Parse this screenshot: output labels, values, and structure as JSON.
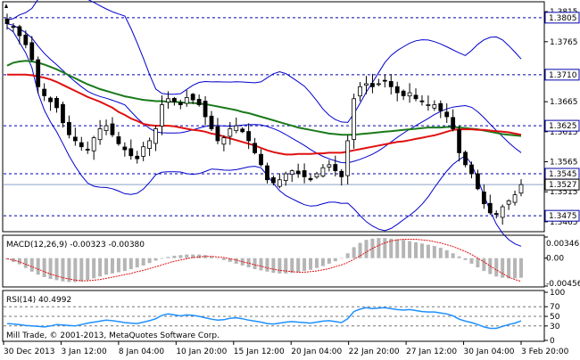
{
  "chart_data": [
    {
      "panel": "price",
      "type": "candlestick",
      "y_ticks": [
        "1.3815",
        "1.3765",
        "1.3665",
        "1.3615",
        "1.3565",
        "1.3515",
        "1.3465"
      ],
      "ylim": [
        1.345,
        1.383
      ],
      "level_lines": [
        {
          "label": "1.3805",
          "value": 1.3805
        },
        {
          "label": "1.3710",
          "value": 1.371
        },
        {
          "label": "1.3625",
          "value": 1.3625
        },
        {
          "label": "1.3545",
          "value": 1.3545
        },
        {
          "label": "1.3475",
          "value": 1.3475
        }
      ],
      "current_price": {
        "label": "1.3527",
        "value": 1.3527
      },
      "closes": [
        1.3795,
        1.379,
        1.3775,
        1.376,
        1.3735,
        1.369,
        1.3675,
        1.3665,
        1.3655,
        1.363,
        1.361,
        1.36,
        1.359,
        1.3585,
        1.3605,
        1.362,
        1.3625,
        1.361,
        1.3595,
        1.3585,
        1.3575,
        1.357,
        1.359,
        1.36,
        1.362,
        1.366,
        1.367,
        1.3665,
        1.366,
        1.3672,
        1.3668,
        1.366,
        1.364,
        1.362,
        1.36,
        1.3605,
        1.362,
        1.3625,
        1.3615,
        1.36,
        1.358,
        1.356,
        1.3535,
        1.353,
        1.3535,
        1.3545,
        1.355,
        1.3545,
        1.354,
        1.3535,
        1.3545,
        1.3555,
        1.356,
        1.355,
        1.354,
        1.36,
        1.367,
        1.369,
        1.3695,
        1.369,
        1.3695,
        1.37,
        1.369,
        1.368,
        1.3675,
        1.368,
        1.367,
        1.3665,
        1.366,
        1.366,
        1.365,
        1.364,
        1.362,
        1.358,
        1.356,
        1.3545,
        1.352,
        1.3495,
        1.348,
        1.3478,
        1.349,
        1.35,
        1.351,
        1.3527
      ],
      "sma_green": [
        1.3725,
        1.373,
        1.3732,
        1.3733,
        1.3732,
        1.373,
        1.3727,
        1.3723,
        1.3719,
        1.3714,
        1.3709,
        1.3704,
        1.3699,
        1.3694,
        1.369,
        1.3686,
        1.3683,
        1.368,
        1.3677,
        1.3674,
        1.3672,
        1.367,
        1.3668,
        1.3667,
        1.3666,
        1.3666,
        1.3665,
        1.3665,
        1.3664,
        1.3663,
        1.3663,
        1.3662,
        1.3661,
        1.3659,
        1.3657,
        1.3655,
        1.3653,
        1.3651,
        1.3648,
        1.3646,
        1.3643,
        1.364,
        1.3637,
        1.3634,
        1.3631,
        1.3628,
        1.3625,
        1.3622,
        1.362,
        1.3618,
        1.3616,
        1.3614,
        1.3612,
        1.3611,
        1.361,
        1.361,
        1.361,
        1.3611,
        1.3612,
        1.3613,
        1.3614,
        1.3615,
        1.3616,
        1.3617,
        1.3618,
        1.3619,
        1.362,
        1.3621,
        1.3622,
        1.3622,
        1.3622,
        1.3623,
        1.3623,
        1.3622,
        1.3621,
        1.362,
        1.3619,
        1.3617,
        1.3615,
        1.3613,
        1.3611,
        1.361,
        1.3609,
        1.3608
      ],
      "sma_red": [
        1.371,
        1.371,
        1.371,
        1.371,
        1.3709,
        1.3707,
        1.3705,
        1.3702,
        1.3698,
        1.3693,
        1.3688,
        1.3683,
        1.3678,
        1.3673,
        1.3669,
        1.3665,
        1.366,
        1.3655,
        1.3648,
        1.3643,
        1.3637,
        1.3633,
        1.3628,
        1.3626,
        1.3625,
        1.3625,
        1.3625,
        1.3624,
        1.3622,
        1.362,
        1.3618,
        1.3617,
        1.3615,
        1.3612,
        1.361,
        1.3607,
        1.3604,
        1.3601,
        1.3598,
        1.3595,
        1.3592,
        1.3588,
        1.3584,
        1.3581,
        1.3579,
        1.3577,
        1.3577,
        1.3578,
        1.3578,
        1.3578,
        1.3579,
        1.3579,
        1.358,
        1.358,
        1.358,
        1.3582,
        1.3584,
        1.3586,
        1.3588,
        1.359,
        1.3592,
        1.3594,
        1.3596,
        1.3598,
        1.3599,
        1.3601,
        1.3603,
        1.3605,
        1.3607,
        1.3609,
        1.3612,
        1.3615,
        1.3618,
        1.3619,
        1.3619,
        1.3619,
        1.3618,
        1.3618,
        1.3617,
        1.3616,
        1.3615,
        1.3614,
        1.3612,
        1.361
      ],
      "x_ticks": [
        "30 Dec 2013",
        "3 Jan 12:00",
        "8 Jan 04:00",
        "10 Jan 20:00",
        "15 Jan 12:00",
        "20 Jan 04:00",
        "22 Jan 20:00",
        "27 Jan 12:00",
        "30 Jan 04:00",
        "3 Feb 20:00"
      ]
    },
    {
      "panel": "macd",
      "type": "histogram+line",
      "label": "MACD(12,26,9) -0.00323 -0.00380",
      "y_ticks": [
        "0.00346",
        "0.00",
        "-0.00456"
      ],
      "ylim": [
        -0.00456,
        0.00346
      ],
      "histogram": [
        -0.0002,
        -0.0006,
        -0.001,
        -0.0016,
        -0.0022,
        -0.0027,
        -0.0031,
        -0.0034,
        -0.0036,
        -0.0038,
        -0.0039,
        -0.0039,
        -0.0038,
        -0.0036,
        -0.0033,
        -0.003,
        -0.0027,
        -0.0025,
        -0.0023,
        -0.0021,
        -0.0018,
        -0.0015,
        -0.0012,
        -0.0008,
        -0.0004,
        -0.0001,
        0.0002,
        0.0004,
        0.0005,
        0.0006,
        0.0006,
        0.0006,
        0.0005,
        0.0003,
        0.0,
        -0.0003,
        -0.0006,
        -0.0009,
        -0.0012,
        -0.0015,
        -0.0018,
        -0.002,
        -0.0022,
        -0.0024,
        -0.0025,
        -0.0025,
        -0.0024,
        -0.0023,
        -0.0021,
        -0.0019,
        -0.0016,
        -0.0013,
        -0.0009,
        -0.0005,
        0.0,
        0.0008,
        0.0018,
        0.0025,
        0.003,
        0.0032,
        0.0033,
        0.0033,
        0.0032,
        0.0031,
        0.003,
        0.0028,
        0.0026,
        0.0024,
        0.0022,
        0.002,
        0.0017,
        0.0013,
        0.0008,
        0.0003,
        -0.0003,
        -0.0009,
        -0.0015,
        -0.0021,
        -0.0026,
        -0.003,
        -0.0032,
        -0.0033,
        -0.0033,
        -0.0032
      ],
      "signal": [
        -0.0001,
        -0.0003,
        -0.0006,
        -0.001,
        -0.0014,
        -0.0018,
        -0.0022,
        -0.0026,
        -0.0029,
        -0.0032,
        -0.0034,
        -0.0036,
        -0.0037,
        -0.0037,
        -0.0036,
        -0.0035,
        -0.0033,
        -0.0031,
        -0.0029,
        -0.0027,
        -0.0025,
        -0.0022,
        -0.002,
        -0.0017,
        -0.0014,
        -0.0011,
        -0.0008,
        -0.0005,
        -0.0003,
        -0.0001,
        0.0001,
        0.0002,
        0.0003,
        0.0003,
        0.0002,
        0.0001,
        -0.0001,
        -0.0003,
        -0.0006,
        -0.0008,
        -0.0011,
        -0.0013,
        -0.0016,
        -0.0018,
        -0.002,
        -0.0021,
        -0.0022,
        -0.0023,
        -0.0023,
        -0.0022,
        -0.0021,
        -0.0019,
        -0.0017,
        -0.0014,
        -0.0011,
        -0.0007,
        -0.0002,
        0.0004,
        0.001,
        0.0016,
        0.0021,
        0.0025,
        0.0028,
        0.003,
        0.0031,
        0.0031,
        0.0031,
        0.003,
        0.0029,
        0.0027,
        0.0025,
        0.0022,
        0.0019,
        0.0015,
        0.0011,
        0.0006,
        0.0,
        -0.0006,
        -0.0013,
        -0.0019,
        -0.0025,
        -0.0031,
        -0.0035,
        -0.0038
      ]
    },
    {
      "panel": "rsi",
      "type": "line",
      "label": "RSI(14) 40.4992",
      "y_ticks": [
        "100",
        "70",
        "50",
        "30",
        "0"
      ],
      "ylim": [
        0,
        100
      ],
      "values": [
        35,
        34,
        33,
        31,
        30,
        29,
        28,
        30,
        33,
        32,
        31,
        30,
        33,
        36,
        38,
        40,
        42,
        41,
        39,
        37,
        36,
        35,
        38,
        41,
        45,
        52,
        55,
        53,
        51,
        53,
        52,
        50,
        47,
        44,
        42,
        43,
        46,
        47,
        45,
        42,
        40,
        38,
        35,
        34,
        36,
        38,
        39,
        38,
        37,
        36,
        38,
        40,
        41,
        39,
        37,
        45,
        60,
        65,
        68,
        66,
        67,
        68,
        66,
        64,
        63,
        64,
        62,
        60,
        59,
        59,
        57,
        55,
        51,
        44,
        40,
        37,
        33,
        28,
        25,
        25,
        29,
        33,
        36,
        40.4992
      ]
    }
  ],
  "footer": {
    "copyright": "Mill Trade, © 2001-2013, MetaQuotes Software Corp."
  },
  "colors": {
    "candle_up": "#ffffff",
    "candle_down": "#000000",
    "bollinger": "#0000cd",
    "sma_green": "#1a7a1a",
    "sma_red": "#e01010",
    "level_line": "#0000aa",
    "macd_hist": "#b5b5b5",
    "macd_signal": "#e01010",
    "rsi": "#1e90ff",
    "grid": "#000000"
  }
}
